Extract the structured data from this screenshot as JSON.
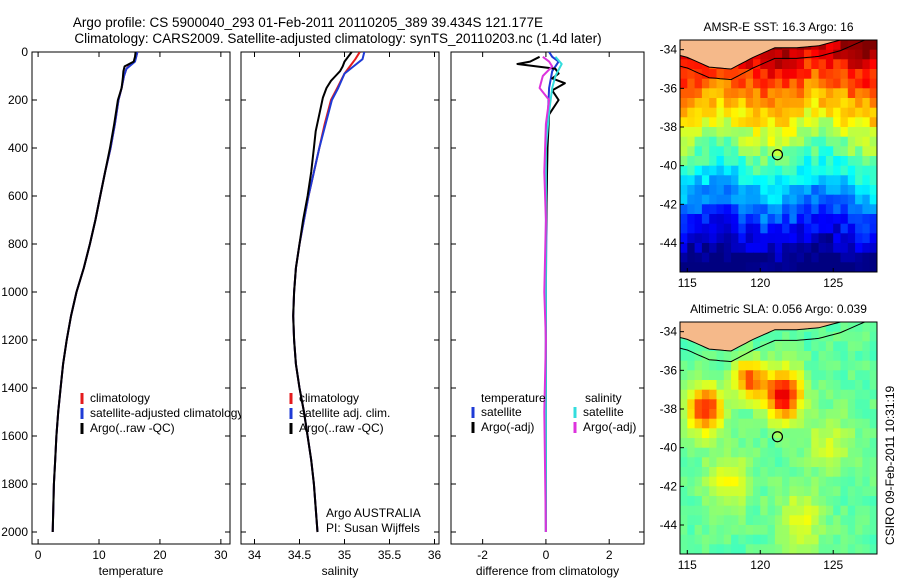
{
  "header": {
    "line1": "Argo profile: CS 5900040_293 01-Feb-2011 20110205_389 39.434S 121.177E",
    "line2": "Climatology: CARS2009. Satellite-adjusted climatology: synTS_20110203.nc (1.4d later)"
  },
  "colors": {
    "climatology": "#e41a1c",
    "satellite": "#1f3bd6",
    "argo": "#000000",
    "sal_satellite": "#33dddd",
    "sal_argo": "#dd33dd",
    "land": "#f5b98a"
  },
  "chart_data": [
    {
      "type": "line",
      "id": "temperature",
      "xlabel": "temperature",
      "ylabel": "",
      "xlim": [
        -1,
        31.5
      ],
      "ylim": [
        2050,
        0
      ],
      "xticks": [
        0,
        10,
        20,
        30
      ],
      "yticks": [
        0,
        200,
        400,
        600,
        800,
        1000,
        1200,
        1400,
        1600,
        1800,
        2000
      ],
      "legend": {
        "position": "lower-right",
        "entries": [
          "climatology",
          "satellite-adjusted climatology",
          "Argo(..raw -QC)"
        ]
      },
      "series": [
        {
          "name": "climatology",
          "color_key": "climatology",
          "points": [
            [
              16.3,
              0
            ],
            [
              16.1,
              20
            ],
            [
              15.8,
              40
            ],
            [
              15.0,
              55
            ],
            [
              14.5,
              70
            ],
            [
              14.1,
              100
            ],
            [
              13.7,
              150
            ],
            [
              13.2,
              200
            ],
            [
              12.6,
              300
            ],
            [
              11.9,
              400
            ],
            [
              11.0,
              500
            ],
            [
              10.2,
              600
            ],
            [
              9.4,
              700
            ],
            [
              8.5,
              800
            ],
            [
              7.5,
              900
            ],
            [
              6.3,
              1000
            ],
            [
              5.4,
              1100
            ],
            [
              4.7,
              1200
            ],
            [
              4.1,
              1300
            ],
            [
              3.7,
              1400
            ],
            [
              3.3,
              1500
            ],
            [
              3.0,
              1600
            ],
            [
              2.8,
              1700
            ],
            [
              2.6,
              1800
            ],
            [
              2.5,
              1900
            ],
            [
              2.4,
              2000
            ]
          ]
        },
        {
          "name": "satellite-adjusted climatology",
          "color_key": "satellite",
          "points": [
            [
              16.3,
              0
            ],
            [
              16.1,
              20
            ],
            [
              15.9,
              40
            ],
            [
              15.2,
              55
            ],
            [
              14.5,
              70
            ],
            [
              14.1,
              100
            ],
            [
              13.7,
              150
            ],
            [
              13.2,
              200
            ],
            [
              12.6,
              300
            ],
            [
              11.9,
              400
            ],
            [
              11.0,
              500
            ],
            [
              10.2,
              600
            ],
            [
              9.4,
              700
            ],
            [
              8.5,
              800
            ],
            [
              7.5,
              900
            ],
            [
              6.3,
              1000
            ],
            [
              5.4,
              1100
            ],
            [
              4.7,
              1200
            ],
            [
              4.1,
              1300
            ],
            [
              3.7,
              1400
            ],
            [
              3.3,
              1500
            ],
            [
              3.0,
              1600
            ],
            [
              2.8,
              1700
            ],
            [
              2.6,
              1800
            ],
            [
              2.5,
              1900
            ],
            [
              2.4,
              2000
            ]
          ]
        },
        {
          "name": "Argo(..raw -QC)",
          "color_key": "argo",
          "points": [
            [
              16.0,
              0
            ],
            [
              15.9,
              20
            ],
            [
              15.7,
              40
            ],
            [
              14.2,
              60
            ],
            [
              14.0,
              80
            ],
            [
              13.9,
              110
            ],
            [
              13.7,
              150
            ],
            [
              13.1,
              200
            ],
            [
              12.5,
              300
            ],
            [
              11.8,
              400
            ],
            [
              11.0,
              500
            ],
            [
              10.2,
              600
            ],
            [
              9.4,
              700
            ],
            [
              8.5,
              800
            ],
            [
              7.5,
              900
            ],
            [
              6.3,
              1000
            ],
            [
              5.4,
              1100
            ],
            [
              4.7,
              1200
            ],
            [
              4.1,
              1300
            ],
            [
              3.7,
              1400
            ],
            [
              3.3,
              1500
            ],
            [
              3.0,
              1600
            ],
            [
              2.8,
              1700
            ],
            [
              2.6,
              1800
            ],
            [
              2.5,
              1900
            ],
            [
              2.4,
              2000
            ]
          ]
        }
      ]
    },
    {
      "type": "line",
      "id": "salinity",
      "xlabel": "salinity",
      "xlim": [
        33.85,
        36.05
      ],
      "ylim": [
        2050,
        0
      ],
      "xticks": [
        34,
        34.5,
        35,
        35.5,
        36
      ],
      "yticks": [
        0,
        200,
        400,
        600,
        800,
        1000,
        1200,
        1400,
        1600,
        1800,
        2000
      ],
      "legend": {
        "position": "lower-right",
        "entries": [
          "climatology",
          "satellite adj. clim.",
          "Argo(..raw -QC)"
        ]
      },
      "annotation": [
        "Argo AUSTRALIA",
        "PI: Susan Wijffels"
      ],
      "series": [
        {
          "name": "climatology",
          "color_key": "climatology",
          "points": [
            [
              35.17,
              0
            ],
            [
              35.12,
              30
            ],
            [
              35.06,
              60
            ],
            [
              35.0,
              90
            ],
            [
              34.92,
              150
            ],
            [
              34.85,
              200
            ],
            [
              34.78,
              300
            ],
            [
              34.72,
              400
            ],
            [
              34.66,
              500
            ],
            [
              34.6,
              600
            ],
            [
              34.55,
              700
            ],
            [
              34.5,
              800
            ],
            [
              34.46,
              900
            ],
            [
              34.44,
              1000
            ],
            [
              34.43,
              1100
            ],
            [
              34.44,
              1200
            ],
            [
              34.46,
              1300
            ],
            [
              34.5,
              1400
            ],
            [
              34.55,
              1500
            ],
            [
              34.59,
              1600
            ],
            [
              34.63,
              1700
            ],
            [
              34.66,
              1800
            ],
            [
              34.68,
              1900
            ],
            [
              34.7,
              2000
            ]
          ]
        },
        {
          "name": "satellite adj. clim.",
          "color_key": "satellite",
          "points": [
            [
              35.22,
              0
            ],
            [
              35.2,
              30
            ],
            [
              35.1,
              60
            ],
            [
              35.0,
              90
            ],
            [
              34.93,
              150
            ],
            [
              34.86,
              200
            ],
            [
              34.79,
              300
            ],
            [
              34.72,
              400
            ],
            [
              34.66,
              500
            ],
            [
              34.6,
              600
            ],
            [
              34.55,
              700
            ],
            [
              34.5,
              800
            ],
            [
              34.46,
              900
            ],
            [
              34.44,
              1000
            ],
            [
              34.43,
              1100
            ],
            [
              34.44,
              1200
            ],
            [
              34.46,
              1300
            ],
            [
              34.5,
              1400
            ],
            [
              34.55,
              1500
            ],
            [
              34.59,
              1600
            ],
            [
              34.63,
              1700
            ],
            [
              34.66,
              1800
            ],
            [
              34.68,
              1900
            ],
            [
              34.7,
              2000
            ]
          ]
        },
        {
          "name": "Argo(..raw -QC)",
          "color_key": "argo",
          "points": [
            [
              35.08,
              0
            ],
            [
              35.04,
              20
            ],
            [
              35.0,
              40
            ],
            [
              34.98,
              60
            ],
            [
              34.95,
              80
            ],
            [
              34.9,
              100
            ],
            [
              34.85,
              120
            ],
            [
              34.8,
              150
            ],
            [
              34.76,
              190
            ],
            [
              34.72,
              260
            ],
            [
              34.68,
              330
            ],
            [
              34.66,
              400
            ],
            [
              34.63,
              500
            ],
            [
              34.59,
              600
            ],
            [
              34.54,
              700
            ],
            [
              34.5,
              800
            ],
            [
              34.46,
              900
            ],
            [
              34.44,
              1000
            ],
            [
              34.43,
              1100
            ],
            [
              34.44,
              1200
            ],
            [
              34.46,
              1300
            ],
            [
              34.5,
              1400
            ],
            [
              34.55,
              1500
            ],
            [
              34.59,
              1600
            ],
            [
              34.63,
              1700
            ],
            [
              34.66,
              1800
            ],
            [
              34.68,
              1900
            ],
            [
              34.7,
              2000
            ]
          ]
        }
      ]
    },
    {
      "type": "line",
      "id": "difference",
      "xlabel": "difference from climatology",
      "xlim": [
        -3,
        3.1
      ],
      "ylim": [
        2050,
        0
      ],
      "xticks": [
        -2,
        0,
        2
      ],
      "yticks": [
        0,
        200,
        400,
        600,
        800,
        1000,
        1200,
        1400,
        1600,
        1800,
        2000
      ],
      "legend": {
        "position": "lower-right",
        "group_titles": [
          "temperature",
          "salinity"
        ],
        "entries": [
          "satellite",
          "Argo(-adj)",
          "satellite",
          "Argo(-adj)"
        ]
      },
      "series": [
        {
          "name": "temperature satellite",
          "color_key": "satellite",
          "points": [
            [
              0.1,
              0
            ],
            [
              0.2,
              20
            ],
            [
              0.4,
              40
            ],
            [
              0.3,
              60
            ],
            [
              0.2,
              80
            ],
            [
              0.1,
              150
            ],
            [
              0.05,
              300
            ],
            [
              0.02,
              600
            ],
            [
              0.0,
              1000
            ],
            [
              0.0,
              1500
            ],
            [
              0.0,
              2000
            ]
          ]
        },
        {
          "name": "temperature Argo(-adj)",
          "color_key": "argo",
          "points": [
            [
              -0.2,
              20
            ],
            [
              -0.5,
              40
            ],
            [
              -0.9,
              50
            ],
            [
              -0.3,
              60
            ],
            [
              0.3,
              70
            ],
            [
              0.4,
              90
            ],
            [
              0.2,
              110
            ],
            [
              0.6,
              130
            ],
            [
              0.2,
              160
            ],
            [
              0.4,
              200
            ],
            [
              0.1,
              260
            ],
            [
              0.05,
              400
            ],
            [
              0.02,
              600
            ],
            [
              0.0,
              800
            ],
            [
              0.0,
              1000
            ],
            [
              0.0,
              1500
            ],
            [
              0.0,
              2000
            ]
          ]
        },
        {
          "name": "salinity satellite",
          "color_key": "sal_satellite",
          "points": [
            [
              0.3,
              20
            ],
            [
              0.5,
              50
            ],
            [
              0.3,
              100
            ],
            [
              0.2,
              150
            ],
            [
              0.1,
              250
            ],
            [
              0.0,
              400
            ],
            [
              0.0,
              1000
            ],
            [
              0.0,
              2000
            ]
          ]
        },
        {
          "name": "salinity Argo(-adj)",
          "color_key": "sal_argo",
          "points": [
            [
              -0.1,
              20
            ],
            [
              0.1,
              40
            ],
            [
              0.2,
              60
            ],
            [
              -0.1,
              100
            ],
            [
              -0.2,
              150
            ],
            [
              0.1,
              200
            ],
            [
              0.0,
              300
            ],
            [
              -0.05,
              500
            ],
            [
              0.0,
              700
            ],
            [
              -0.05,
              1000
            ],
            [
              0.0,
              1200
            ],
            [
              -0.05,
              1500
            ],
            [
              0.0,
              2000
            ]
          ]
        }
      ]
    },
    {
      "type": "heatmap",
      "id": "sst-map",
      "title": "AMSR-E SST: 16.3 Argo: 16",
      "xlim": [
        114.5,
        128
      ],
      "ylim": [
        -45.5,
        -33.5
      ],
      "xticks": [
        115,
        120,
        125
      ],
      "yticks": [
        -34,
        -36,
        -38,
        -40,
        -42,
        -44
      ],
      "marker": {
        "lon": 121.177,
        "lat": -39.434
      },
      "colormap": "jet"
    },
    {
      "type": "heatmap",
      "id": "sla-map",
      "title": "Altimetric SLA: 0.056 Argo: 0.039",
      "xlim": [
        114.5,
        128
      ],
      "ylim": [
        -45.5,
        -33.5
      ],
      "xticks": [
        115,
        120,
        125
      ],
      "yticks": [
        -34,
        -36,
        -38,
        -40,
        -42,
        -44
      ],
      "marker": {
        "lon": 121.177,
        "lat": -39.434
      },
      "colormap": "jet"
    }
  ],
  "footer": {
    "stamp": "CSIRO 09-Feb-2011 10:31:19"
  }
}
